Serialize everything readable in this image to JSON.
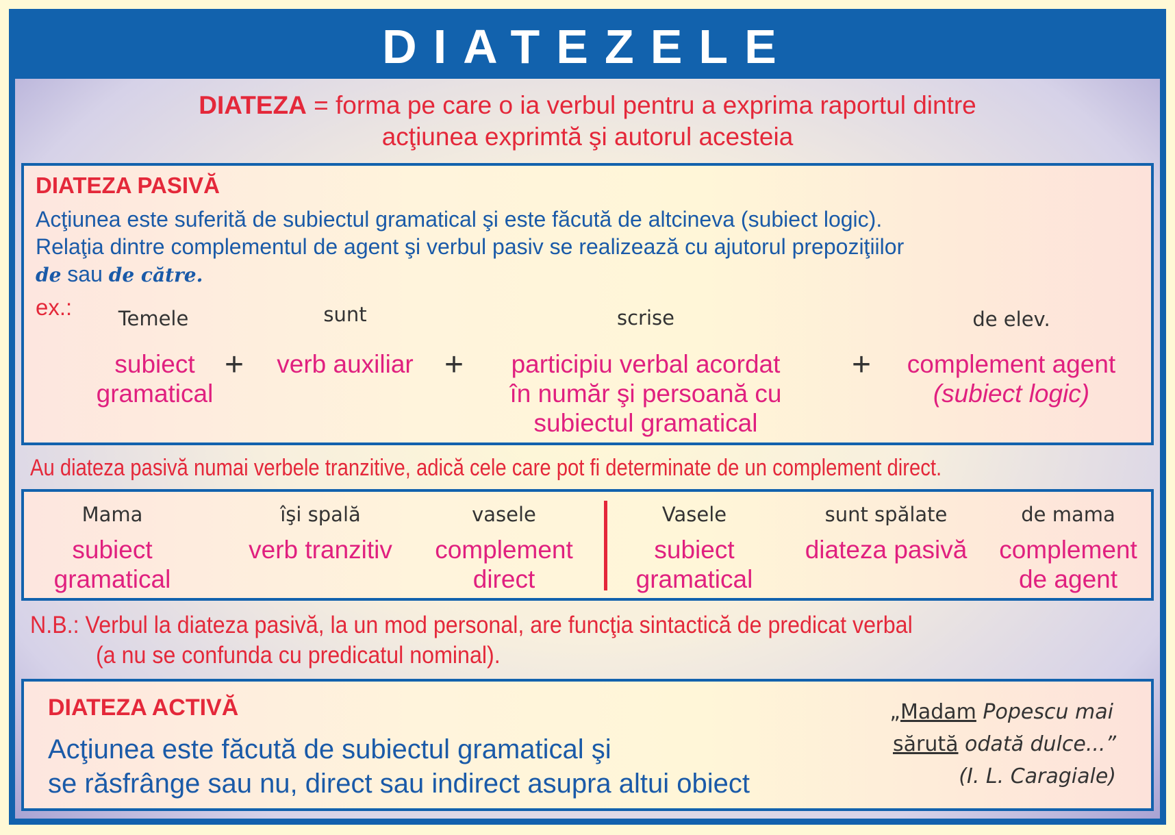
{
  "title": "DIATEZELE",
  "definition": {
    "term": "DIATEZA",
    "line1_rest": " = forma pe care o ia verbul pentru a exprima raportul dintre",
    "line2": "acţiunea exprimtă şi autorul acesteia"
  },
  "passive": {
    "heading": "DIATEZA PASIVĂ",
    "line1": "Acţiunea este suferită de subiectul gramatical şi este făcută de altcineva (subiect logic).",
    "line2": "Relaţia dintre complementul de agent şi verbul pasiv se realizează cu ajutorul prepoziţiilor",
    "line3_de": "de",
    "line3_sau": " sau ",
    "line3_decatre": "de către.",
    "ex_label": "ex.:",
    "example_words": [
      "Temele",
      "sunt",
      "scrise",
      "de elev."
    ],
    "example_labels": [
      [
        "subiect",
        "gramatical"
      ],
      [
        "verb auxiliar"
      ],
      [
        "participiu verbal acordat",
        "în număr şi persoană cu",
        "subiectul gramatical"
      ],
      [
        "complement agent",
        "(subiect logic)"
      ]
    ],
    "plus": "+"
  },
  "rule": "Au diateza pasivă numai verbele tranzitive, adică cele care pot fi determinate de un complement direct.",
  "comparison": {
    "left": [
      {
        "word": "Mama",
        "label": [
          "subiect",
          "gramatical"
        ]
      },
      {
        "word": "îşi spală",
        "label": [
          "verb tranzitiv"
        ]
      },
      {
        "word": "vasele",
        "label": [
          "complement",
          "direct"
        ]
      }
    ],
    "right": [
      {
        "word": "Vasele",
        "label": [
          "subiect",
          "gramatical"
        ]
      },
      {
        "word": "sunt spălate",
        "label": [
          "diateza pasivă"
        ]
      },
      {
        "word": "de mama",
        "label": [
          "complement",
          "de agent"
        ]
      }
    ]
  },
  "nb": {
    "line1": "N.B.: Verbul la diateza pasivă, la un mod personal, are funcţia sintactică de predicat verbal",
    "line2": "(a nu se confunda cu predicatul nominal)."
  },
  "active": {
    "heading": "DIATEZA ACTIVĂ",
    "line1": "Acţiunea este făcută de subiectul gramatical şi",
    "line2": "se răsfrânge sau nu, direct sau indirect asupra altui obiect",
    "quote_open": "„",
    "quote_u1": "Madam",
    "quote_rest1": " Popescu mai",
    "quote_u2": "sărută",
    "quote_rest2": " odată dulce...”",
    "quote_author": "(I. L. Caragiale)"
  },
  "colors": {
    "frame": "#1262ad",
    "heading": "#e4283a",
    "label": "#e0207f",
    "text": "#1a5aa8"
  }
}
